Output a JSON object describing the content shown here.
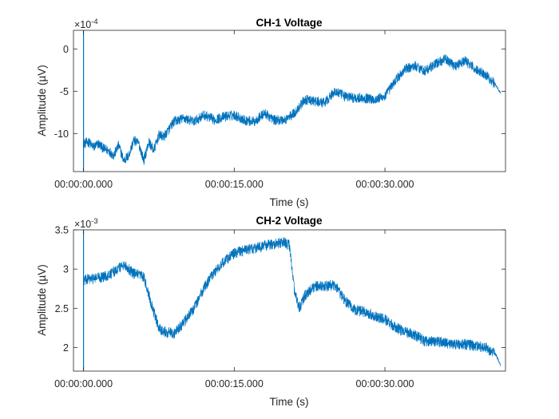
{
  "chart_data": [
    {
      "type": "line",
      "title": "CH-1 Voltage",
      "xlabel": "Time (s)",
      "ylabel": "Amplitude (µV)",
      "y_exponent_base": "×10",
      "y_exponent": "-4",
      "xlim": [
        -1,
        42
      ],
      "ylim": [
        -14.5,
        2.2
      ],
      "x_ticks": [
        0,
        15,
        30
      ],
      "x_tick_labels": [
        "00:00:00.000",
        "00:00:15.000",
        "00:00:30.000"
      ],
      "y_ticks": [
        0,
        -5,
        -10
      ],
      "y_tick_labels": [
        "0",
        "-5",
        "-10"
      ],
      "cursor_x": 0,
      "grid": false,
      "line_color": "#0072bd",
      "series": [
        {
          "x": [
            0,
            0.5,
            1,
            1.5,
            2,
            2.5,
            3,
            3.5,
            4,
            4.5,
            5,
            5.5,
            6,
            6.5,
            7,
            7.5,
            8,
            9,
            10,
            11,
            12,
            13,
            14,
            15,
            16,
            17,
            18,
            19,
            20,
            21,
            22,
            23,
            24,
            25,
            26,
            27,
            28,
            29,
            30,
            31,
            32,
            33,
            34,
            35,
            36,
            37,
            38,
            39,
            40,
            41,
            41.5
          ],
          "y": [
            -11.2,
            -11.0,
            -11.6,
            -11.2,
            -11.8,
            -12.0,
            -12.6,
            -11.4,
            -13.2,
            -12.6,
            -10.8,
            -11.2,
            -13.2,
            -11.0,
            -12.0,
            -10.2,
            -10.4,
            -8.6,
            -8.2,
            -8.6,
            -7.8,
            -8.4,
            -8.0,
            -7.8,
            -8.4,
            -8.6,
            -7.6,
            -8.4,
            -8.4,
            -7.6,
            -6.0,
            -6.2,
            -6.4,
            -5.0,
            -5.6,
            -5.8,
            -5.8,
            -6.0,
            -5.6,
            -3.8,
            -2.4,
            -2.0,
            -2.6,
            -1.8,
            -1.2,
            -2.0,
            -1.4,
            -2.4,
            -3.0,
            -4.2,
            -5.2
          ],
          "noise": 1.2
        }
      ]
    },
    {
      "type": "line",
      "title": "CH-2 Voltage",
      "xlabel": "Time (s)",
      "ylabel": "Amplitude (µV)",
      "y_exponent_base": "×10",
      "y_exponent": "-3",
      "xlim": [
        -1,
        42
      ],
      "ylim": [
        1.7,
        3.5
      ],
      "x_ticks": [
        0,
        15,
        30
      ],
      "x_tick_labels": [
        "00:00:00.000",
        "00:00:15.000",
        "00:00:30.000"
      ],
      "y_ticks": [
        3.5,
        3,
        2.5,
        2
      ],
      "y_tick_labels": [
        "3.5",
        "3",
        "2.5",
        "2"
      ],
      "cursor_x": 0,
      "grid": false,
      "line_color": "#0072bd",
      "series": [
        {
          "x": [
            0,
            0.5,
            1,
            2,
            3,
            4,
            5,
            6,
            7,
            7.5,
            8,
            9,
            10,
            11,
            12,
            13,
            14,
            15,
            16,
            17,
            18,
            19,
            20,
            20.5,
            21,
            21.5,
            22,
            23,
            24,
            25,
            26,
            27,
            28,
            29,
            30,
            31,
            32,
            33,
            34,
            35,
            36,
            37,
            38,
            39,
            40,
            41,
            41.5
          ],
          "y": [
            2.86,
            2.87,
            2.88,
            2.9,
            2.96,
            3.06,
            2.94,
            2.9,
            2.45,
            2.25,
            2.2,
            2.18,
            2.32,
            2.5,
            2.76,
            2.96,
            3.1,
            3.2,
            3.24,
            3.26,
            3.3,
            3.32,
            3.34,
            3.3,
            2.7,
            2.5,
            2.66,
            2.78,
            2.78,
            2.8,
            2.6,
            2.48,
            2.45,
            2.4,
            2.36,
            2.26,
            2.2,
            2.16,
            2.08,
            2.08,
            2.06,
            2.04,
            2.04,
            2.02,
            2.0,
            1.92,
            1.78
          ],
          "noise": 0.14
        }
      ]
    }
  ]
}
